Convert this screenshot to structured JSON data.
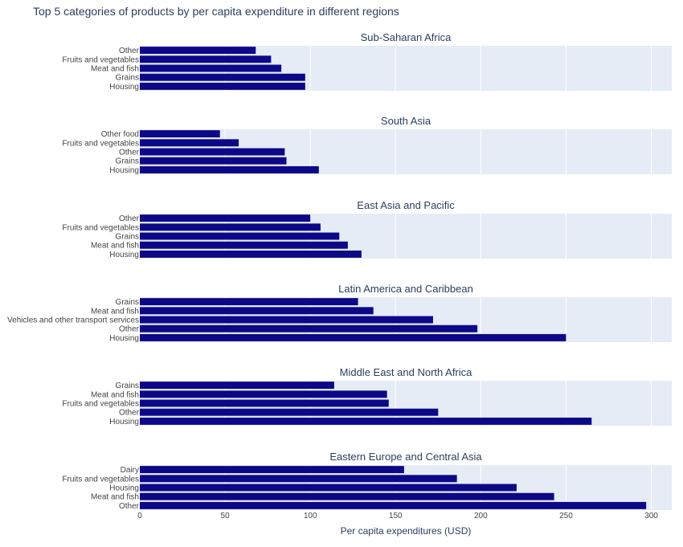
{
  "title": "Top 5 categories of products by per capita expenditure in different regions",
  "xlabel": "Per capita expenditures (USD)",
  "colors": {
    "bar": "#0d0887",
    "plot_bg": "#e5ecf6",
    "grid": "#ffffff",
    "text": "#2a3f5f",
    "tick_text": "#444444"
  },
  "chart_data": {
    "type": "bar",
    "orientation": "horizontal",
    "xlim": [
      0,
      312
    ],
    "xticks": [
      0,
      50,
      100,
      150,
      200,
      250,
      300
    ],
    "grid": true,
    "panels": [
      {
        "title": "Sub-Saharan Africa",
        "categories": [
          "Other",
          "Fruits and vegetables",
          "Meat and fish",
          "Grains",
          "Housing"
        ],
        "values": [
          68,
          77,
          83,
          97,
          97
        ]
      },
      {
        "title": "South Asia",
        "categories": [
          "Other food",
          "Fruits and vegetables",
          "Other",
          "Grains",
          "Housing"
        ],
        "values": [
          47,
          58,
          85,
          86,
          105
        ]
      },
      {
        "title": "East Asia and Pacific",
        "categories": [
          "Other",
          "Fruits and vegetables",
          "Grains",
          "Meat and fish",
          "Housing"
        ],
        "values": [
          100,
          106,
          117,
          122,
          130
        ]
      },
      {
        "title": "Latin America and Caribbean",
        "categories": [
          "Grains",
          "Meat and fish",
          "Vehicles and other transport services",
          "Other",
          "Housing"
        ],
        "values": [
          128,
          137,
          172,
          198,
          250
        ]
      },
      {
        "title": "Middle East and North Africa",
        "categories": [
          "Grains",
          "Meat and fish",
          "Fruits and vegetables",
          "Other",
          "Housing"
        ],
        "values": [
          114,
          145,
          146,
          175,
          265
        ]
      },
      {
        "title": "Eastern Europe and Central Asia",
        "categories": [
          "Dairy",
          "Fruits and vegetables",
          "Housing",
          "Meat and fish",
          "Other"
        ],
        "values": [
          155,
          186,
          221,
          243,
          297
        ]
      }
    ]
  }
}
